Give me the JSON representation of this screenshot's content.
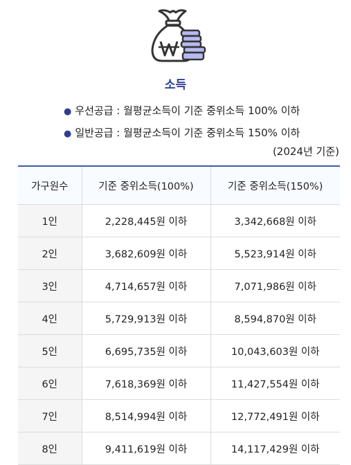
{
  "section": {
    "icon": "money-bag-won-icon",
    "title": "소득",
    "criteria": [
      "우선공급 : 월평균소득이 기준 중위소득 100% 이하",
      "일반공급 : 월평균소득이 기준 중위소득 150% 이하"
    ],
    "base_year": "(2024년 기준)"
  },
  "table": {
    "headers": [
      "가구원수",
      "기준 중위소득(100%)",
      "기준 중위소득(150%)"
    ],
    "rows": [
      [
        "1인",
        "2,228,445원 이하",
        "3,342,668원 이하"
      ],
      [
        "2인",
        "3,682,609원 이하",
        "5,523,914원 이하"
      ],
      [
        "3인",
        "4,714,657원 이하",
        "7,071,986원 이하"
      ],
      [
        "4인",
        "5,729,913원 이하",
        "8,594,870원 이하"
      ],
      [
        "5인",
        "6,695,735원 이하",
        "10,043,603원 이하"
      ],
      [
        "6인",
        "7,618,369원 이하",
        "11,427,554원 이하"
      ],
      [
        "7인",
        "8,514,994원 이하",
        "12,772,491원 이하"
      ],
      [
        "8인",
        "9,411,619원 이하",
        "14,117,429원 이하"
      ]
    ]
  },
  "colors": {
    "accent": "#2f3f93",
    "table_top_border": "#3b5ba3",
    "icon_coins": "#b7b9ef"
  }
}
